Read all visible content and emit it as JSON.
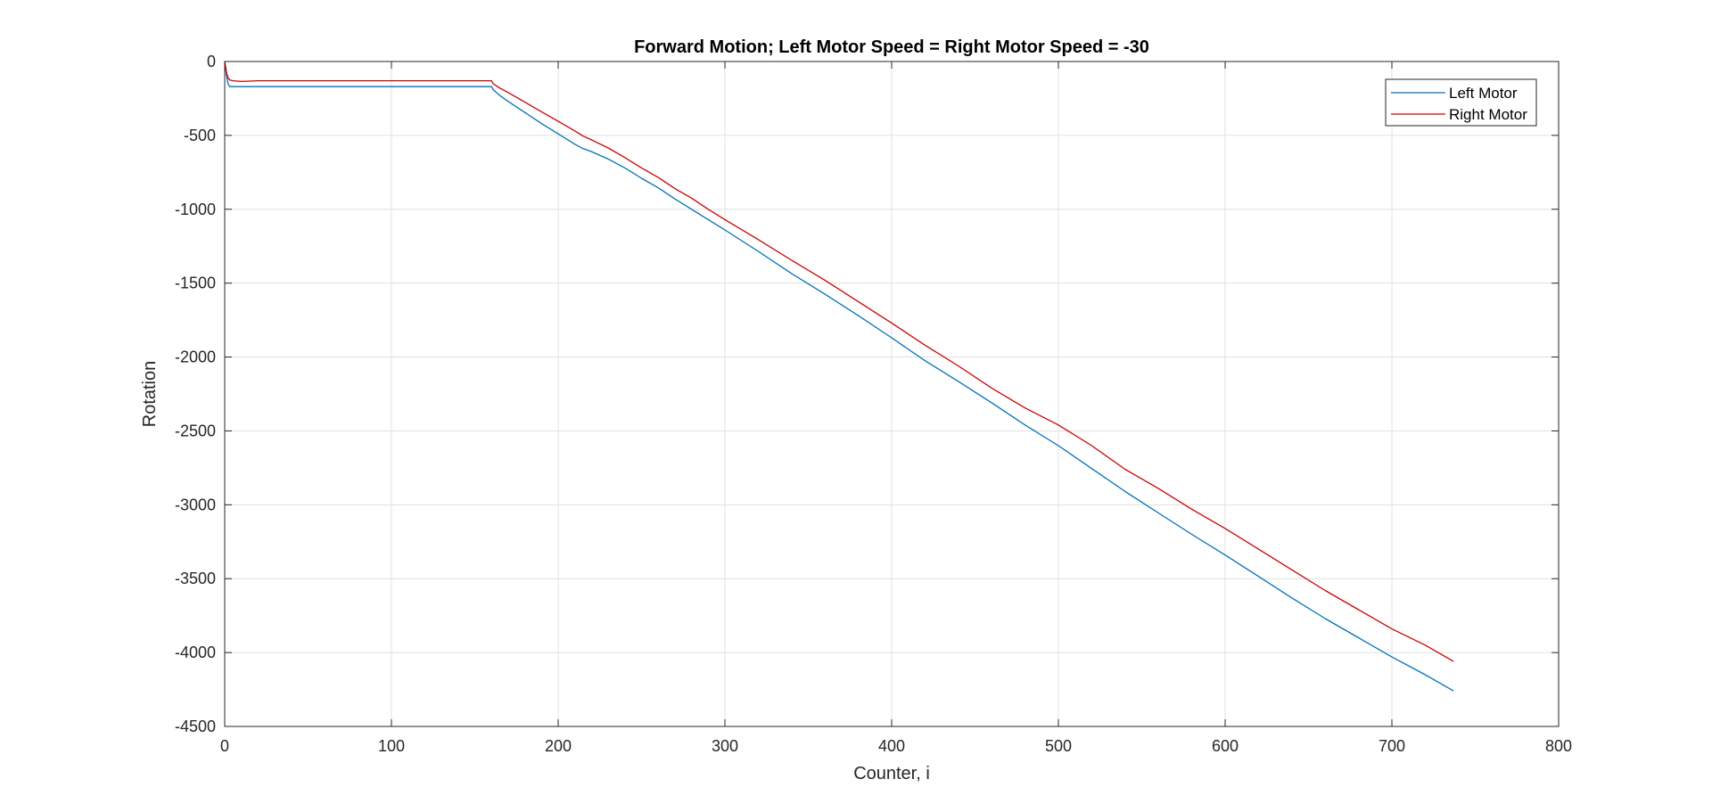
{
  "chart_data": {
    "type": "line",
    "title": "Forward Motion; Left Motor Speed = Right Motor Speed = -30",
    "xlabel": "Counter, i",
    "ylabel": "Rotation",
    "xlim": [
      0,
      800
    ],
    "ylim": [
      -4500,
      0
    ],
    "xticks": [
      0,
      100,
      200,
      300,
      400,
      500,
      600,
      700,
      800
    ],
    "yticks": [
      0,
      -500,
      -1000,
      -1500,
      -2000,
      -2500,
      -3000,
      -3500,
      -4000,
      -4500
    ],
    "xtick_labels": [
      "0",
      "100",
      "200",
      "300",
      "400",
      "500",
      "600",
      "700",
      "800"
    ],
    "ytick_labels": [
      "0",
      "-500",
      "-1000",
      "-1500",
      "-2000",
      "-2500",
      "-3000",
      "-3500",
      "-4000",
      "-4500"
    ],
    "grid": true,
    "legend_position": "top-right",
    "series": [
      {
        "name": "Left Motor",
        "color": "#0072BD",
        "x": [
          0,
          1,
          2,
          3,
          5,
          10,
          20,
          40,
          80,
          120,
          160,
          161,
          165,
          170,
          180,
          190,
          200,
          210,
          215,
          220,
          230,
          240,
          250,
          260,
          270,
          280,
          290,
          300,
          320,
          340,
          360,
          380,
          400,
          420,
          440,
          460,
          480,
          500,
          520,
          540,
          560,
          580,
          600,
          620,
          640,
          660,
          680,
          700,
          720,
          737
        ],
        "y": [
          0,
          -90,
          -150,
          -170,
          -170,
          -170,
          -170,
          -170,
          -170,
          -170,
          -170,
          -190,
          -230,
          -270,
          -345,
          -420,
          -490,
          -560,
          -590,
          -610,
          -660,
          -720,
          -790,
          -855,
          -930,
          -1000,
          -1070,
          -1140,
          -1285,
          -1435,
          -1575,
          -1720,
          -1870,
          -2025,
          -2165,
          -2310,
          -2460,
          -2600,
          -2755,
          -2910,
          -3055,
          -3200,
          -3340,
          -3485,
          -3630,
          -3770,
          -3900,
          -4030,
          -4150,
          -4260
        ]
      },
      {
        "name": "Right Motor",
        "color": "#D00000",
        "x": [
          0,
          1,
          2,
          3,
          5,
          10,
          20,
          40,
          80,
          120,
          160,
          161,
          165,
          170,
          180,
          190,
          200,
          210,
          215,
          220,
          230,
          240,
          250,
          260,
          270,
          280,
          290,
          300,
          320,
          340,
          360,
          380,
          400,
          420,
          440,
          460,
          480,
          500,
          520,
          540,
          560,
          580,
          600,
          620,
          640,
          660,
          680,
          700,
          720,
          737
        ],
        "y": [
          0,
          -70,
          -110,
          -125,
          -130,
          -135,
          -130,
          -130,
          -130,
          -130,
          -130,
          -150,
          -180,
          -210,
          -275,
          -340,
          -405,
          -470,
          -505,
          -530,
          -585,
          -650,
          -720,
          -785,
          -860,
          -925,
          -1000,
          -1070,
          -1205,
          -1345,
          -1480,
          -1625,
          -1770,
          -1920,
          -2060,
          -2210,
          -2345,
          -2460,
          -2600,
          -2760,
          -2890,
          -3030,
          -3160,
          -3300,
          -3440,
          -3580,
          -3710,
          -3840,
          -3950,
          -4060
        ]
      }
    ]
  }
}
